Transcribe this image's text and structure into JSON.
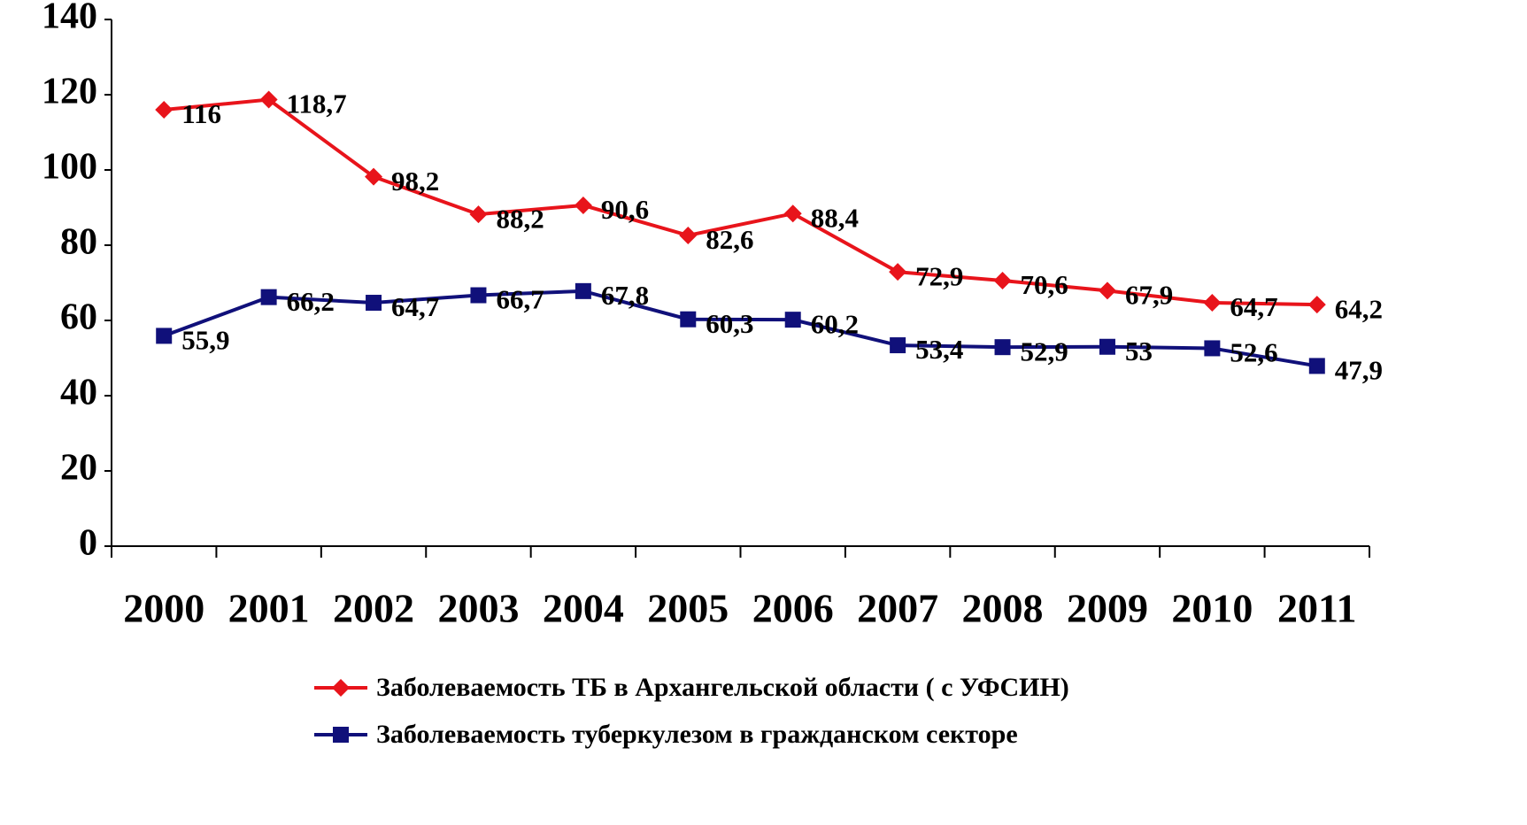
{
  "chart_data": {
    "type": "line",
    "categories": [
      "2000",
      "2001",
      "2002",
      "2003",
      "2004",
      "2005",
      "2006",
      "2007",
      "2008",
      "2009",
      "2010",
      "2011"
    ],
    "series": [
      {
        "name": "Заболеваемость ТБ в Архангельской области ( с УФСИН)",
        "color": "#e8141b",
        "marker": "diamond",
        "values": [
          116,
          118.7,
          98.2,
          88.2,
          90.6,
          82.6,
          88.4,
          72.9,
          70.6,
          67.9,
          64.7,
          64.2
        ],
        "value_labels": [
          "116",
          "118,7",
          "98,2",
          "88,2",
          "90,6",
          "82,6",
          "88,4",
          "72,9",
          "70,6",
          "67,9",
          "64,7",
          "64,2"
        ]
      },
      {
        "name": "Заболеваемость туберкулезом в гражданском секторе",
        "color": "#10107a",
        "marker": "square",
        "values": [
          55.9,
          66.2,
          64.7,
          66.7,
          67.8,
          60.3,
          60.2,
          53.4,
          52.9,
          53,
          52.6,
          47.9
        ],
        "value_labels": [
          "55,9",
          "66,2",
          "64,7",
          "66,7",
          "67,8",
          "60,3",
          "60,2",
          "53,4",
          "52,9",
          "53",
          "52,6",
          "47,9"
        ]
      }
    ],
    "ylim": [
      0,
      140
    ],
    "yticks": [
      0,
      20,
      40,
      60,
      80,
      100,
      120,
      140
    ],
    "grid": false
  }
}
